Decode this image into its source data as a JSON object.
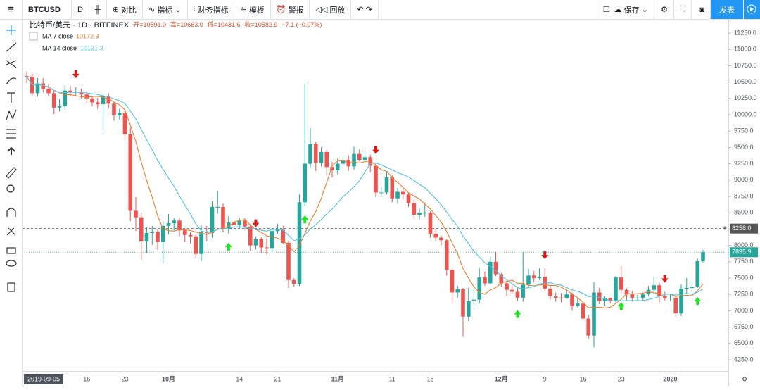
{
  "toolbar": {
    "symbol": "BTCUSD",
    "interval": "D",
    "compare": "对比",
    "indicators": "指标",
    "financials": "财务指标",
    "templates": "模板",
    "alert": "警报",
    "replay": "回放",
    "save": "保存",
    "publish": "发表"
  },
  "chart_data": {
    "type": "candlestick",
    "legend": {
      "symbol": "比特币/美元 · 1D · BITFINEX",
      "items": [
        "开=10591.0",
        "高=10663.0",
        "低=10481.6",
        "收=10582.9",
        "−7.1 (−0.07%)"
      ]
    },
    "indicators": [
      {
        "name": "MA 7 close",
        "period": 7,
        "value_label": "10172.3",
        "color": "#f57c2a"
      },
      {
        "name": "MA 14 close",
        "period": 14,
        "value_label": "10121.3",
        "color": "#4fc3e8"
      }
    ],
    "up_color": "#26a69a",
    "down_color": "#ef5350",
    "ylim": [
      6067,
      11455
    ],
    "yticks": [
      {
        "value": 6250,
        "label": "6250.0"
      },
      {
        "value": 6500,
        "label": "6500.0"
      },
      {
        "value": 6750,
        "label": "6750.0"
      },
      {
        "value": 7000,
        "label": "7000.0"
      },
      {
        "value": 7250,
        "label": "7250.0"
      },
      {
        "value": 7500,
        "label": "7500.0"
      },
      {
        "value": 7750,
        "label": "7750.0"
      },
      {
        "value": 8000,
        "label": "8000.0"
      },
      {
        "value": 8250,
        "label": "8250.0"
      },
      {
        "value": 8500,
        "label": "8500.0"
      },
      {
        "value": 8750,
        "label": "8750.0"
      },
      {
        "value": 9000,
        "label": "9000.0"
      },
      {
        "value": 9250,
        "label": "9250.0"
      },
      {
        "value": 9500,
        "label": "9500.0"
      },
      {
        "value": 9750,
        "label": "9750.0"
      },
      {
        "value": 10000,
        "label": "10000.0"
      },
      {
        "value": 10250,
        "label": "10250.0"
      },
      {
        "value": 10500,
        "label": "10500.0"
      },
      {
        "value": 10750,
        "label": "10750.0"
      },
      {
        "value": 11000,
        "label": "11000.0"
      },
      {
        "value": 11250,
        "label": "11250.0"
      }
    ],
    "price_lines": [
      {
        "value": 8258,
        "label": "8258.0",
        "color": "#555555",
        "style": "dashed"
      },
      {
        "value": 7895.9,
        "label": "7895.9",
        "color": "#26a69a",
        "style": "dotted"
      }
    ],
    "signals": [
      {
        "index": 9,
        "direction": "down"
      },
      {
        "index": 42,
        "direction": "down"
      },
      {
        "index": 64,
        "direction": "down"
      },
      {
        "index": 95,
        "direction": "down"
      },
      {
        "index": 117,
        "direction": "down"
      },
      {
        "index": 37,
        "direction": "up"
      },
      {
        "index": 51,
        "direction": "up"
      },
      {
        "index": 90,
        "direction": "up"
      },
      {
        "index": 109,
        "direction": "up"
      },
      {
        "index": 123,
        "direction": "up"
      }
    ],
    "categories": [
      "2019-09-05",
      null,
      null,
      null,
      null,
      null,
      null,
      null,
      null,
      null,
      null,
      "16",
      null,
      null,
      null,
      null,
      null,
      null,
      "23",
      null,
      null,
      null,
      null,
      null,
      null,
      null,
      "10月",
      null,
      null,
      null,
      null,
      null,
      null,
      null,
      null,
      null,
      null,
      null,
      null,
      "14",
      null,
      null,
      null,
      null,
      null,
      null,
      "21",
      null,
      null,
      null,
      null,
      null,
      null,
      null,
      null,
      null,
      null,
      "11月",
      null,
      null,
      null,
      null,
      null,
      null,
      null,
      null,
      null,
      "11",
      null,
      null,
      null,
      null,
      null,
      null,
      "18",
      null,
      null,
      null,
      null,
      null,
      null,
      null,
      null,
      null,
      null,
      null,
      null,
      "12月",
      null,
      null,
      null,
      null,
      null,
      null,
      null,
      "9",
      null,
      null,
      null,
      null,
      null,
      null,
      "16",
      null,
      null,
      null,
      null,
      null,
      null,
      "23",
      null,
      null,
      null,
      null,
      null,
      null,
      null,
      null,
      "2020",
      null,
      null,
      null,
      null,
      null,
      null
    ],
    "ohlc": [
      [
        10591,
        10663,
        10481.6,
        10582.9
      ],
      [
        10583,
        10640,
        10290,
        10330
      ],
      [
        10330,
        10560,
        10280,
        10480
      ],
      [
        10480,
        10560,
        10340,
        10400
      ],
      [
        10400,
        10470,
        10280,
        10330
      ],
      [
        10330,
        10380,
        10010,
        10110
      ],
      [
        10110,
        10240,
        10050,
        10130
      ],
      [
        10130,
        10450,
        10080,
        10370
      ],
      [
        10370,
        10440,
        10280,
        10350
      ],
      [
        10350,
        10420,
        10290,
        10350
      ],
      [
        10350,
        10400,
        10250,
        10310
      ],
      [
        10310,
        10360,
        10170,
        10250
      ],
      [
        10250,
        10290,
        10130,
        10190
      ],
      [
        10190,
        10260,
        10090,
        10160
      ],
      [
        10160,
        10340,
        9700,
        10280
      ],
      [
        10280,
        10330,
        10100,
        10170
      ],
      [
        10170,
        10200,
        9910,
        9990
      ],
      [
        9990,
        10090,
        9930,
        10030
      ],
      [
        10030,
        10050,
        9620,
        9700
      ],
      [
        9700,
        9800,
        8370,
        8530
      ],
      [
        8530,
        8740,
        8220,
        8430
      ],
      [
        8430,
        8500,
        7780,
        8060
      ],
      [
        8060,
        8280,
        7880,
        8190
      ],
      [
        8190,
        8300,
        8010,
        8210
      ],
      [
        8210,
        8250,
        7930,
        8050
      ],
      [
        8050,
        8370,
        7730,
        8300
      ],
      [
        8300,
        8480,
        8170,
        8340
      ],
      [
        8340,
        8420,
        8230,
        8380
      ],
      [
        8380,
        8410,
        8140,
        8230
      ],
      [
        8230,
        8260,
        8050,
        8160
      ],
      [
        8160,
        8200,
        8030,
        8140
      ],
      [
        8140,
        8170,
        7800,
        7870
      ],
      [
        7870,
        8310,
        7760,
        8210
      ],
      [
        8210,
        8300,
        8060,
        8190
      ],
      [
        8190,
        8680,
        8120,
        8590
      ],
      [
        8590,
        8830,
        8490,
        8590
      ],
      [
        8590,
        8640,
        8200,
        8260
      ],
      [
        8260,
        8450,
        8180,
        8350
      ],
      [
        8350,
        8390,
        8260,
        8310
      ],
      [
        8310,
        8420,
        8250,
        8380
      ],
      [
        8380,
        8420,
        8240,
        8290
      ],
      [
        8290,
        8320,
        7920,
        8000
      ],
      [
        8000,
        8140,
        7940,
        8100
      ],
      [
        8100,
        8130,
        7880,
        7970
      ],
      [
        7970,
        8110,
        7860,
        7960
      ],
      [
        7960,
        8260,
        7900,
        8220
      ],
      [
        8220,
        8330,
        8180,
        8240
      ],
      [
        8240,
        8300,
        8020,
        8040
      ],
      [
        8040,
        8070,
        7350,
        7470
      ],
      [
        7470,
        7500,
        7360,
        7410
      ],
      [
        7410,
        8780,
        7380,
        8660
      ],
      [
        8660,
        10480,
        8600,
        9250
      ],
      [
        9250,
        9800,
        9200,
        9550
      ],
      [
        9550,
        9580,
        9140,
        9260
      ],
      [
        9260,
        9500,
        9210,
        9430
      ],
      [
        9430,
        9460,
        9070,
        9200
      ],
      [
        9200,
        9280,
        9040,
        9150
      ],
      [
        9150,
        9330,
        9090,
        9250
      ],
      [
        9250,
        9380,
        9220,
        9310
      ],
      [
        9310,
        9380,
        9140,
        9210
      ],
      [
        9210,
        9510,
        9160,
        9400
      ],
      [
        9400,
        9470,
        9290,
        9310
      ],
      [
        9310,
        9440,
        9280,
        9350
      ],
      [
        9350,
        9390,
        9120,
        9220
      ],
      [
        9220,
        9260,
        8740,
        8810
      ],
      [
        8810,
        8890,
        8740,
        8810
      ],
      [
        8810,
        9120,
        8780,
        9040
      ],
      [
        9040,
        9080,
        8660,
        8720
      ],
      [
        8720,
        8880,
        8640,
        8820
      ],
      [
        8820,
        8870,
        8700,
        8780
      ],
      [
        8780,
        8800,
        8590,
        8650
      ],
      [
        8650,
        8700,
        8410,
        8470
      ],
      [
        8470,
        8560,
        8400,
        8500
      ],
      [
        8500,
        8660,
        8440,
        8500
      ],
      [
        8500,
        8520,
        8120,
        8180
      ],
      [
        8180,
        8240,
        8060,
        8120
      ],
      [
        8120,
        8150,
        8000,
        8080
      ],
      [
        8080,
        8100,
        7540,
        7620
      ],
      [
        7620,
        7660,
        7120,
        7280
      ],
      [
        7280,
        7380,
        7200,
        7330
      ],
      [
        7330,
        7350,
        6600,
        6910
      ],
      [
        6910,
        7350,
        6840,
        7150
      ],
      [
        7150,
        7340,
        7030,
        7170
      ],
      [
        7170,
        7650,
        7110,
        7510
      ],
      [
        7510,
        7600,
        7380,
        7420
      ],
      [
        7420,
        7830,
        7400,
        7750
      ],
      [
        7750,
        7900,
        7530,
        7560
      ],
      [
        7560,
        7580,
        7370,
        7420
      ],
      [
        7420,
        7460,
        7230,
        7320
      ],
      [
        7320,
        7400,
        7260,
        7290
      ],
      [
        7290,
        7350,
        7150,
        7200
      ],
      [
        7200,
        7900,
        7140,
        7400
      ],
      [
        7400,
        7640,
        7350,
        7540
      ],
      [
        7540,
        7610,
        7440,
        7500
      ],
      [
        7500,
        7650,
        7470,
        7520
      ],
      [
        7520,
        7650,
        7300,
        7340
      ],
      [
        7340,
        7380,
        7170,
        7220
      ],
      [
        7220,
        7280,
        7140,
        7200
      ],
      [
        7200,
        7270,
        7130,
        7190
      ],
      [
        7190,
        7300,
        7180,
        7250
      ],
      [
        7250,
        7280,
        7000,
        7070
      ],
      [
        7070,
        7190,
        7050,
        7110
      ],
      [
        7110,
        7130,
        6850,
        6880
      ],
      [
        6880,
        6940,
        6570,
        6620
      ],
      [
        6620,
        7440,
        6440,
        7280
      ],
      [
        7280,
        7350,
        7100,
        7150
      ],
      [
        7150,
        7220,
        7080,
        7190
      ],
      [
        7190,
        7200,
        7110,
        7150
      ],
      [
        7150,
        7530,
        7130,
        7510
      ],
      [
        7510,
        7680,
        7270,
        7320
      ],
      [
        7320,
        7340,
        7150,
        7250
      ],
      [
        7250,
        7300,
        7140,
        7200
      ],
      [
        7200,
        7260,
        7150,
        7200
      ],
      [
        7200,
        7280,
        7160,
        7250
      ],
      [
        7250,
        7380,
        7220,
        7320
      ],
      [
        7320,
        7510,
        7260,
        7390
      ],
      [
        7390,
        7430,
        7130,
        7220
      ],
      [
        7220,
        7290,
        7160,
        7190
      ],
      [
        7190,
        7260,
        7150,
        7200
      ],
      [
        7200,
        7220,
        6910,
        6960
      ],
      [
        6960,
        7400,
        6920,
        7340
      ],
      [
        7340,
        7500,
        7260,
        7350
      ],
      [
        7350,
        7490,
        7310,
        7360
      ],
      [
        7360,
        7800,
        7350,
        7760
      ],
      [
        7760,
        7930,
        7740,
        7895.9
      ]
    ]
  }
}
